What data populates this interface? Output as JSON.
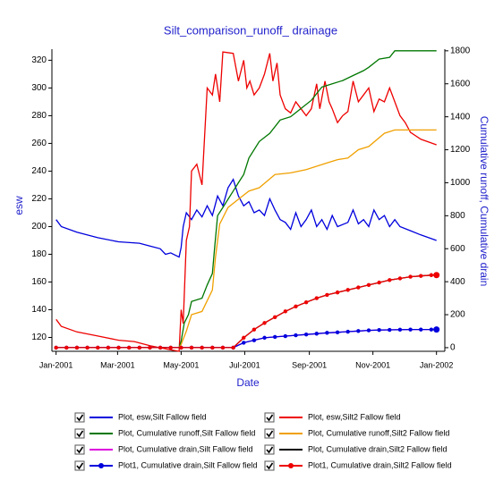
{
  "chart_data": {
    "type": "line",
    "title": "Silt_comparison_runoff_ drainage",
    "x_label": "Date",
    "y_label": "esw",
    "y2_label": "Cumulative runoff, Cumulative drain",
    "xlim": [
      -4,
      373
    ],
    "xticks": [
      {
        "value": 0,
        "label": "Jan-2001"
      },
      {
        "value": 59,
        "label": "Mar-2001"
      },
      {
        "value": 120,
        "label": "May-2001"
      },
      {
        "value": 181,
        "label": "Jul-2001"
      },
      {
        "value": 243,
        "label": "Sep-2001"
      },
      {
        "value": 304,
        "label": "Nov-2001"
      },
      {
        "value": 365,
        "label": "Jan-2002"
      }
    ],
    "ylim": [
      110,
      328
    ],
    "yticks": [
      120,
      140,
      160,
      180,
      200,
      220,
      240,
      260,
      280,
      300,
      320
    ],
    "y2lim": [
      -22,
      1810
    ],
    "y2ticks": [
      0,
      200,
      400,
      600,
      800,
      1000,
      1200,
      1400,
      1600,
      1800
    ],
    "grid": false,
    "series": [
      {
        "name": "Plot, esw,Silt Fallow field",
        "color": "#0000dd",
        "axis": "y",
        "x": [
          0,
          5,
          20,
          40,
          60,
          80,
          90,
          100,
          105,
          110,
          118,
          120,
          122,
          125,
          130,
          135,
          140,
          145,
          150,
          155,
          160,
          165,
          170,
          175,
          180,
          185,
          190,
          195,
          200,
          205,
          210,
          215,
          220,
          225,
          230,
          235,
          240,
          245,
          250,
          255,
          260,
          265,
          270,
          280,
          285,
          290,
          295,
          300,
          305,
          310,
          315,
          320,
          325,
          330,
          340,
          350,
          365
        ],
        "values": [
          205,
          200,
          196,
          192,
          189,
          188,
          186,
          184,
          180,
          181,
          178,
          185,
          200,
          210,
          205,
          212,
          207,
          215,
          208,
          222,
          215,
          228,
          234,
          222,
          215,
          218,
          210,
          212,
          208,
          220,
          212,
          205,
          203,
          198,
          210,
          200,
          205,
          212,
          200,
          205,
          198,
          208,
          200,
          203,
          212,
          202,
          205,
          200,
          212,
          205,
          208,
          200,
          205,
          200,
          197,
          194,
          190
        ]
      },
      {
        "name": "Plot, esw,Silt2 Fallow field",
        "color": "#ee0000",
        "axis": "y",
        "x": [
          0,
          5,
          20,
          40,
          60,
          75,
          90,
          110,
          118,
          120,
          122,
          125,
          128,
          130,
          135,
          140,
          145,
          150,
          153,
          157,
          160,
          170,
          175,
          180,
          183,
          186,
          190,
          195,
          200,
          205,
          208,
          212,
          215,
          220,
          225,
          230,
          235,
          240,
          245,
          250,
          253,
          258,
          262,
          265,
          270,
          275,
          280,
          285,
          290,
          295,
          300,
          305,
          310,
          315,
          320,
          325,
          330,
          335,
          340,
          350,
          365
        ],
        "values": [
          133,
          128,
          124,
          121,
          118,
          117,
          114,
          111,
          110,
          140,
          130,
          190,
          200,
          240,
          245,
          230,
          300,
          295,
          310,
          290,
          326,
          325,
          305,
          320,
          300,
          305,
          295,
          300,
          310,
          325,
          305,
          318,
          295,
          285,
          282,
          290,
          285,
          280,
          285,
          303,
          285,
          305,
          290,
          285,
          275,
          280,
          283,
          305,
          290,
          295,
          300,
          283,
          292,
          290,
          300,
          290,
          280,
          275,
          268,
          263,
          259
        ]
      },
      {
        "name": "Plot, Cumulative runoff,Silt Fallow field",
        "color": "#007700",
        "axis": "y2",
        "x": [
          0,
          118,
          120,
          123,
          127,
          130,
          140,
          145,
          150,
          152,
          155,
          160,
          165,
          170,
          175,
          180,
          185,
          195,
          205,
          215,
          225,
          235,
          245,
          255,
          265,
          275,
          285,
          295,
          300,
          310,
          320,
          325,
          365
        ],
        "values": [
          0,
          0,
          40,
          150,
          200,
          280,
          300,
          380,
          450,
          600,
          800,
          850,
          900,
          950,
          1000,
          1050,
          1150,
          1250,
          1300,
          1380,
          1400,
          1450,
          1500,
          1580,
          1600,
          1620,
          1650,
          1680,
          1700,
          1750,
          1760,
          1800,
          1800
        ]
      },
      {
        "name": "Plot, Cumulative runoff,Silt2 Fallow field",
        "color": "#f0a000",
        "axis": "y2",
        "x": [
          0,
          118,
          120,
          125,
          130,
          140,
          150,
          153,
          157,
          165,
          175,
          185,
          195,
          210,
          225,
          240,
          260,
          270,
          280,
          290,
          300,
          315,
          325,
          365
        ],
        "values": [
          0,
          0,
          20,
          100,
          200,
          220,
          350,
          550,
          750,
          850,
          900,
          950,
          970,
          1050,
          1060,
          1080,
          1120,
          1140,
          1150,
          1200,
          1220,
          1300,
          1320,
          1320
        ]
      },
      {
        "name": "Plot, Cumulative drain,Silt Fallow field",
        "color": "#dd00dd",
        "axis": "y2",
        "x": [
          0,
          10,
          20,
          30,
          40,
          50,
          60,
          70,
          80,
          90,
          100,
          110,
          120,
          130,
          140,
          150,
          160,
          170,
          180,
          190,
          200,
          210,
          220,
          230,
          240,
          250,
          260,
          270,
          280,
          290,
          300,
          310,
          320,
          330,
          340,
          350,
          360,
          365
        ],
        "values": [
          0,
          0,
          0,
          0,
          0,
          0,
          0,
          0,
          0,
          0,
          0,
          0,
          0,
          0,
          0,
          0,
          0,
          0,
          30,
          45,
          60,
          65,
          70,
          75,
          80,
          85,
          90,
          93,
          97,
          101,
          105,
          107,
          108,
          109,
          110,
          110,
          110,
          110
        ]
      },
      {
        "name": "Plot, Cumulative drain,Silt2 Fallow field",
        "color": "#000000",
        "axis": "y2",
        "x": [
          0,
          10,
          20,
          30,
          40,
          50,
          60,
          70,
          80,
          90,
          100,
          110,
          120,
          130,
          140,
          150,
          160,
          170,
          180,
          190,
          200,
          210,
          220,
          230,
          240,
          250,
          260,
          270,
          280,
          290,
          300,
          310,
          320,
          330,
          340,
          350,
          360,
          365
        ],
        "values": [
          0,
          0,
          0,
          0,
          0,
          0,
          0,
          0,
          0,
          0,
          0,
          0,
          0,
          0,
          0,
          0,
          0,
          0,
          60,
          110,
          150,
          185,
          220,
          250,
          275,
          300,
          320,
          335,
          350,
          365,
          380,
          395,
          410,
          420,
          430,
          435,
          440,
          440
        ]
      },
      {
        "name": "Plot1, Cumulative drain,Silt Fallow field",
        "color": "#0000dd",
        "axis": "y2",
        "marker": "circle",
        "x": [
          0,
          10,
          20,
          30,
          40,
          50,
          60,
          70,
          80,
          90,
          100,
          110,
          120,
          130,
          140,
          150,
          160,
          170,
          180,
          190,
          200,
          210,
          220,
          230,
          240,
          250,
          260,
          270,
          280,
          290,
          300,
          310,
          320,
          330,
          340,
          350,
          360,
          365
        ],
        "values": [
          0,
          0,
          0,
          0,
          0,
          0,
          0,
          0,
          0,
          0,
          0,
          0,
          0,
          0,
          0,
          0,
          0,
          0,
          30,
          45,
          60,
          65,
          70,
          75,
          80,
          85,
          90,
          93,
          97,
          101,
          105,
          107,
          108,
          109,
          110,
          110,
          110,
          110
        ]
      },
      {
        "name": "Plot1, Cumulative drain,Silt2 Fallow field",
        "color": "#ee0000",
        "axis": "y2",
        "marker": "circle",
        "x": [
          0,
          10,
          20,
          30,
          40,
          50,
          60,
          70,
          80,
          90,
          100,
          110,
          120,
          130,
          140,
          150,
          160,
          170,
          180,
          190,
          200,
          210,
          220,
          230,
          240,
          250,
          260,
          270,
          280,
          290,
          300,
          310,
          320,
          330,
          340,
          350,
          360,
          365
        ],
        "values": [
          0,
          0,
          0,
          0,
          0,
          0,
          0,
          0,
          0,
          0,
          0,
          0,
          0,
          0,
          0,
          0,
          0,
          0,
          60,
          110,
          150,
          185,
          220,
          250,
          275,
          300,
          320,
          335,
          350,
          365,
          380,
          395,
          410,
          420,
          430,
          435,
          440,
          440
        ]
      }
    ]
  }
}
